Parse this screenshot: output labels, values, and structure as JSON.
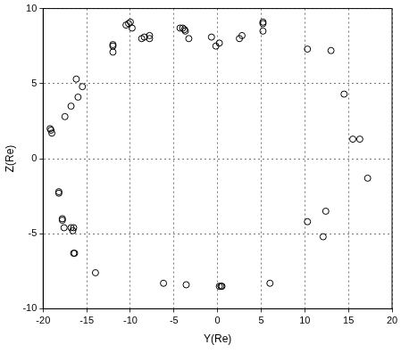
{
  "chart_data": {
    "type": "scatter",
    "x_label": "Y(Re)",
    "y_label": "Z(Re)",
    "x": [
      -19.1,
      -19.0,
      -19.2,
      -16.2,
      -15.5,
      -16.0,
      -16.8,
      -17.5,
      -12.0,
      -12.0,
      -12.0,
      -10.5,
      -10.2,
      -10.0,
      -9.8,
      -8.7,
      -8.4,
      -7.8,
      -7.8,
      -4.3,
      -4.0,
      -3.8,
      -3.7,
      -3.3,
      -0.7,
      -0.2,
      0.2,
      2.5,
      2.8,
      5.2,
      5.2,
      5.2,
      10.3,
      13.0,
      14.5,
      15.5,
      16.3,
      17.2,
      10.3,
      12.4,
      12.1,
      -18.2,
      -18.2,
      -17.8,
      -17.8,
      -17.6,
      -16.8,
      -16.5,
      -16.6,
      -16.4,
      -16.5,
      -14.0,
      -6.2,
      -3.6,
      0.2,
      0.4,
      0.5,
      6.0
    ],
    "values": [
      1.9,
      1.7,
      2.0,
      5.3,
      4.8,
      4.1,
      3.5,
      2.8,
      7.6,
      7.1,
      7.5,
      8.9,
      9.0,
      9.1,
      8.7,
      8.0,
      8.1,
      8.2,
      8.0,
      8.7,
      8.7,
      8.6,
      8.5,
      8.0,
      8.1,
      7.5,
      7.7,
      8.0,
      8.2,
      9.1,
      9.0,
      8.5,
      7.3,
      7.2,
      4.3,
      1.3,
      1.3,
      -1.3,
      -4.2,
      -3.5,
      -5.2,
      -2.2,
      -2.3,
      -4.0,
      -4.1,
      -4.6,
      -4.6,
      -4.6,
      -4.8,
      -6.3,
      -6.3,
      -7.6,
      -8.3,
      -8.4,
      -8.5,
      -8.5,
      -8.5,
      -8.3
    ],
    "color": "#000000",
    "marker": "open_circle",
    "xlim": [
      -20,
      20
    ],
    "xticks": [
      -20,
      -15,
      -10,
      -5,
      0,
      5,
      10,
      15,
      20
    ],
    "ylim": [
      -10,
      10
    ],
    "yticks": [
      -10,
      -5,
      0,
      5,
      10
    ],
    "grid": true
  }
}
